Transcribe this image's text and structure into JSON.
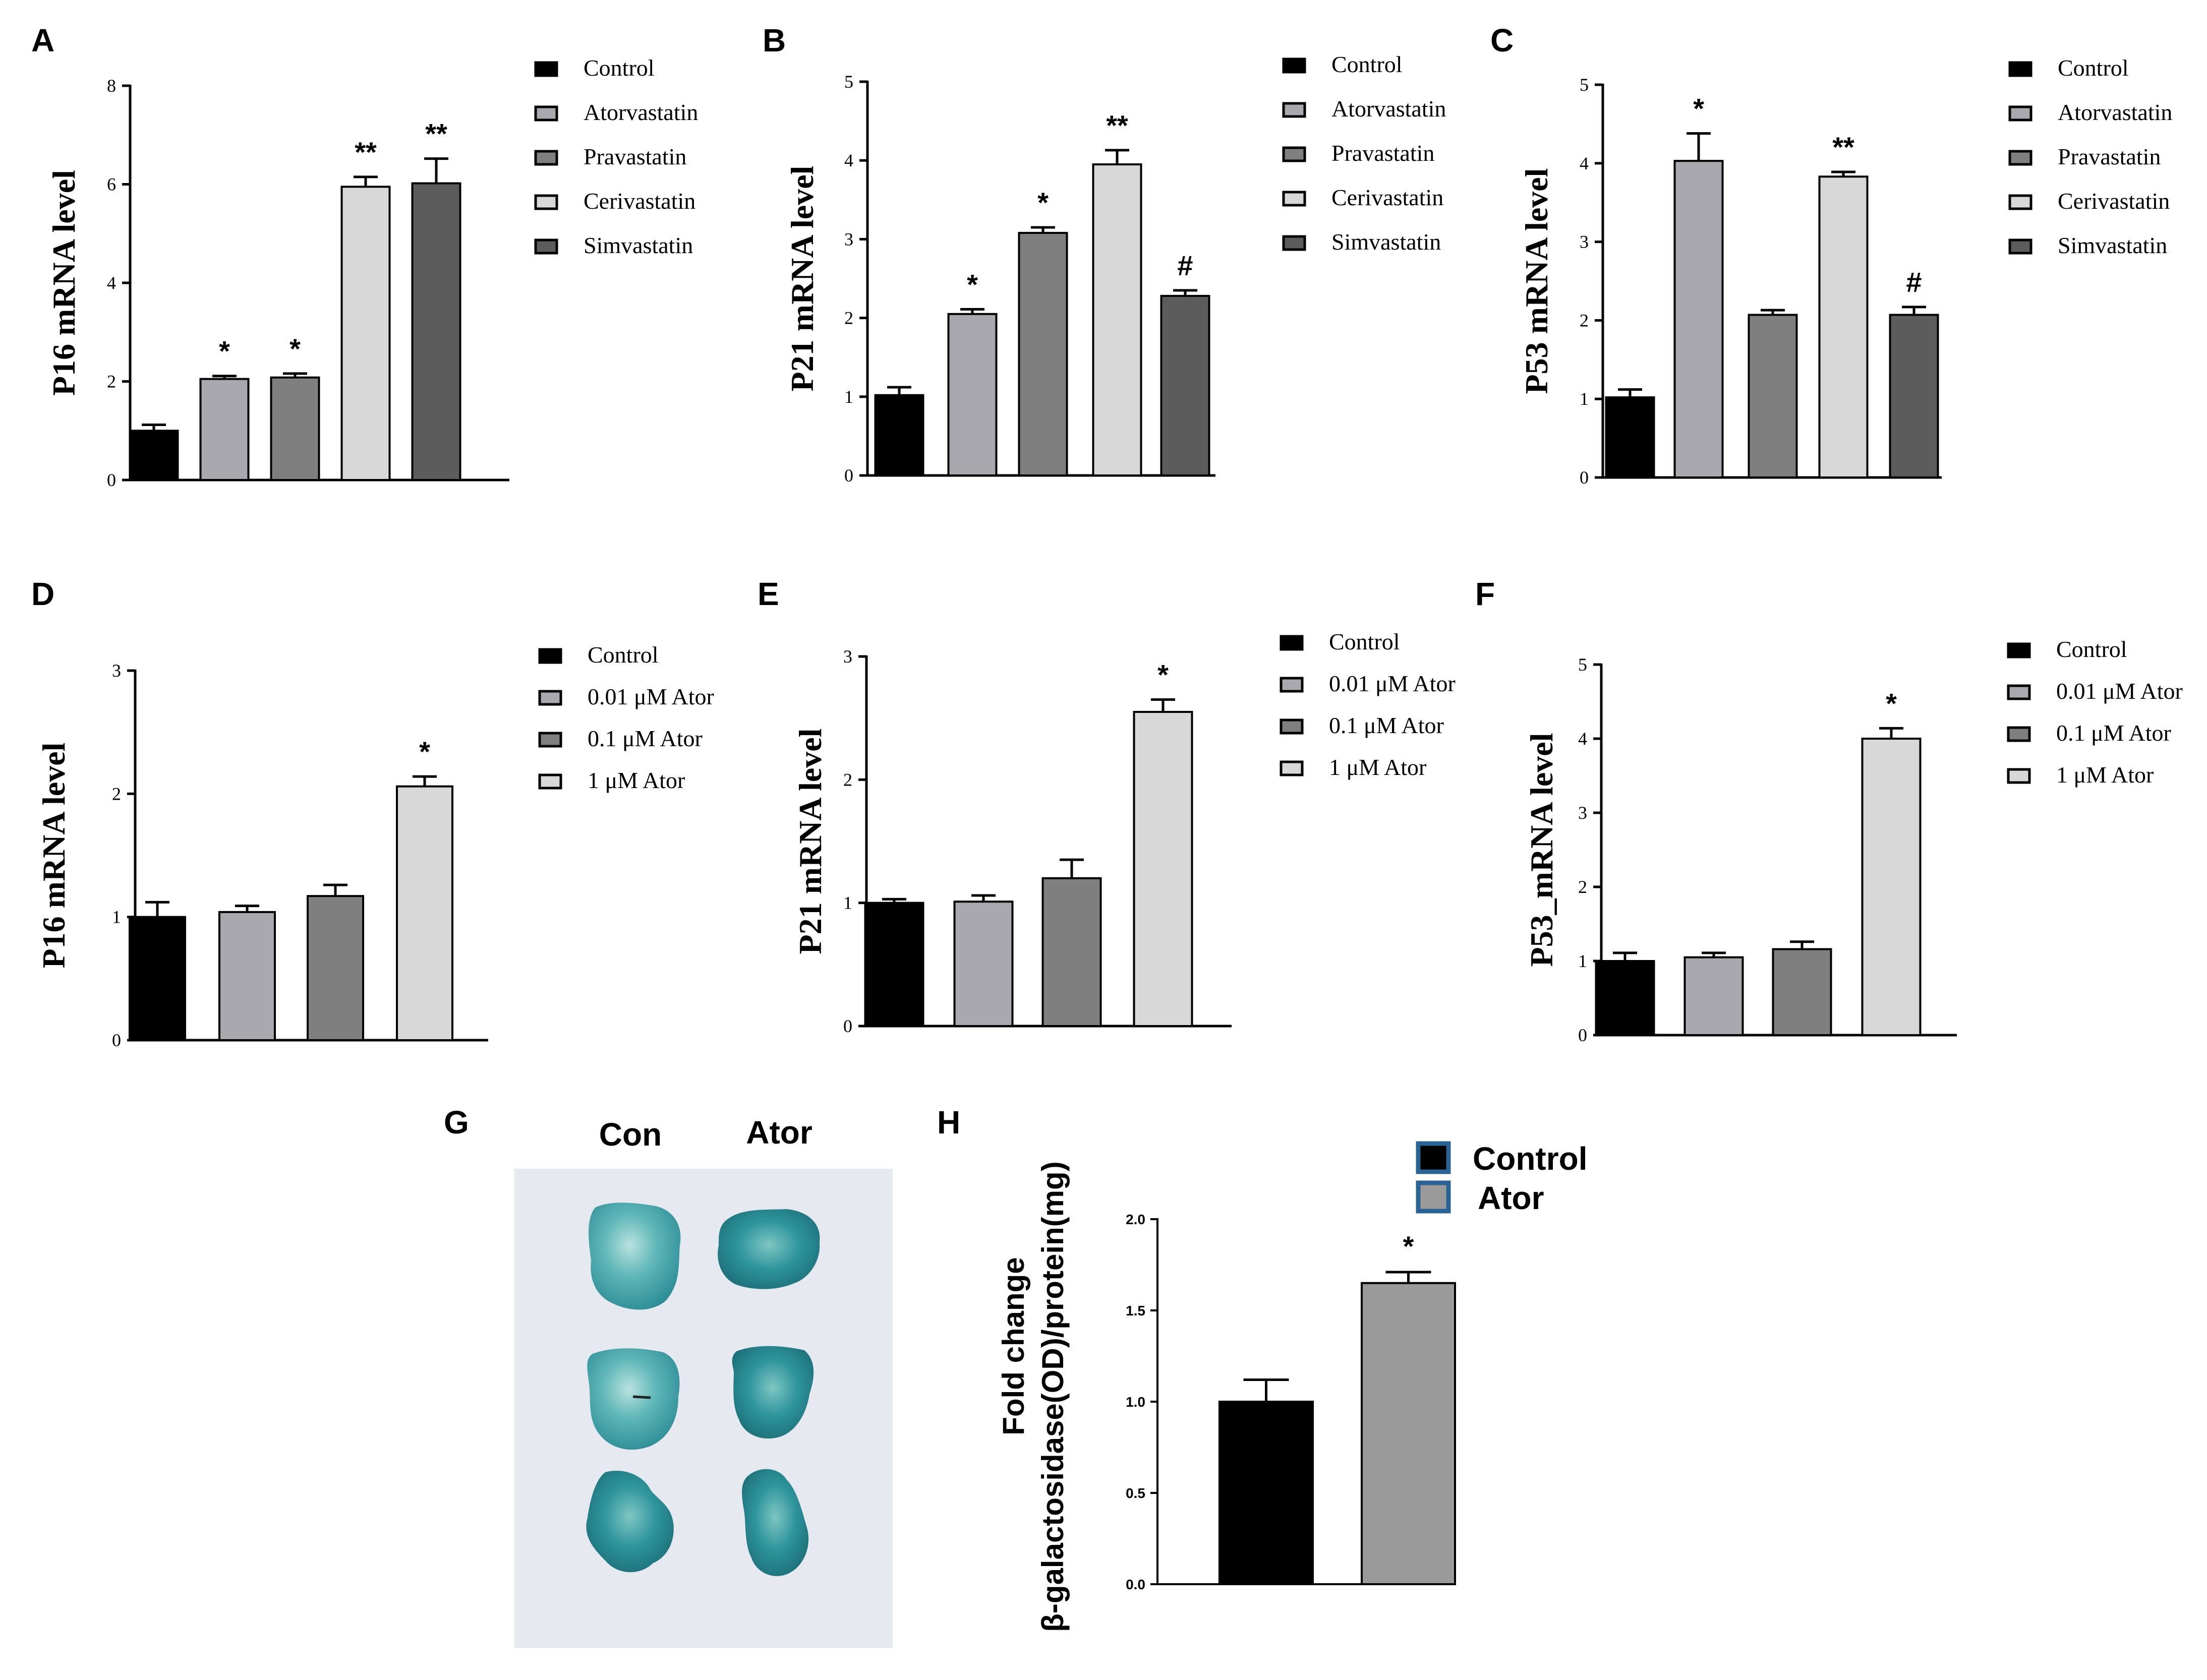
{
  "colors": {
    "black": "#000000",
    "atorvastatin": "#a8a8ae",
    "pravastatin": "#7f7f7f",
    "cerivastatin": "#d8d8d8",
    "simvastatin": "#5c5c5c",
    "legend_border_blue": "#2a6496",
    "photo_bg": "#e7eaf1",
    "tissue": "#3d9ea4"
  },
  "chart_data": [
    {
      "panel": "A",
      "type": "bar",
      "ylabel": "P16 mRNA level",
      "ylim": [
        0,
        8
      ],
      "yticks": [
        0,
        2,
        4,
        6,
        8
      ],
      "categories": [
        "Control",
        "Atorvastatin",
        "Pravastatin",
        "Cerivastatin",
        "Simvastatin"
      ],
      "values": [
        1.0,
        2.05,
        2.08,
        5.95,
        6.02
      ],
      "errors": [
        0.12,
        0.06,
        0.08,
        0.2,
        0.5
      ],
      "marks": [
        "",
        "*",
        "*",
        "**",
        "**"
      ],
      "legend": [
        "Control",
        "Atorvastatin",
        "Pravastatin",
        "Cerivastatin",
        "Simvastatin"
      ]
    },
    {
      "panel": "B",
      "type": "bar",
      "ylabel": "P21 mRNA level",
      "ylim": [
        0,
        5
      ],
      "yticks": [
        0,
        1,
        2,
        3,
        4,
        5
      ],
      "categories": [
        "Control",
        "Atorvastatin",
        "Pravastatin",
        "Cerivastatin",
        "Simvastatin"
      ],
      "values": [
        1.02,
        2.05,
        3.08,
        3.95,
        2.28
      ],
      "errors": [
        0.1,
        0.06,
        0.07,
        0.18,
        0.07
      ],
      "marks": [
        "",
        "*",
        "*",
        "**",
        "#"
      ],
      "legend": [
        "Control",
        "Atorvastatin",
        "Pravastatin",
        "Cerivastatin",
        "Simvastatin"
      ]
    },
    {
      "panel": "C",
      "type": "bar",
      "ylabel": "P53 mRNA level",
      "ylim": [
        0,
        5
      ],
      "yticks": [
        0,
        1,
        2,
        3,
        4,
        5
      ],
      "categories": [
        "Control",
        "Atorvastatin",
        "Pravastatin",
        "Cerivastatin",
        "Simvastatin"
      ],
      "values": [
        1.02,
        4.03,
        2.07,
        3.83,
        2.07
      ],
      "errors": [
        0.1,
        0.35,
        0.06,
        0.06,
        0.1
      ],
      "marks": [
        "",
        "*",
        "",
        "**",
        "#"
      ],
      "legend": [
        "Control",
        "Atorvastatin",
        "Pravastatin",
        "Cerivastatin",
        "Simvastatin"
      ]
    },
    {
      "panel": "D",
      "type": "bar",
      "ylabel": "P16 mRNA level",
      "ylim": [
        0,
        3
      ],
      "yticks": [
        0,
        1,
        2,
        3
      ],
      "categories": [
        "Control",
        "0.01 μM Ator",
        "0.1 μM Ator",
        "1 μM Ator"
      ],
      "values": [
        1.0,
        1.04,
        1.17,
        2.06
      ],
      "errors": [
        0.12,
        0.05,
        0.09,
        0.08
      ],
      "marks": [
        "",
        "",
        "",
        "*"
      ],
      "legend": [
        "Control",
        "0.01 μM Ator",
        "0.1 μM Ator",
        "1 μM Ator"
      ]
    },
    {
      "panel": "E",
      "type": "bar",
      "ylabel": "P21 mRNA level",
      "ylim": [
        0,
        3
      ],
      "yticks": [
        0,
        1,
        2,
        3
      ],
      "categories": [
        "Control",
        "0.01 μM Ator",
        "0.1 μM Ator",
        "1 μM Ator"
      ],
      "values": [
        1.0,
        1.01,
        1.2,
        2.55
      ],
      "errors": [
        0.03,
        0.05,
        0.15,
        0.1
      ],
      "marks": [
        "",
        "",
        "",
        "*"
      ],
      "legend": [
        "Control",
        "0.01 μM Ator",
        "0.1 μM Ator",
        "1 μM Ator"
      ]
    },
    {
      "panel": "F",
      "type": "bar",
      "ylabel": "P53_mRNA level",
      "ylim": [
        0,
        5
      ],
      "yticks": [
        0,
        1,
        2,
        3,
        4,
        5
      ],
      "categories": [
        "Control",
        "0.01 μM Ator",
        "0.1 μM Ator",
        "1 μM Ator"
      ],
      "values": [
        1.0,
        1.05,
        1.16,
        4.0
      ],
      "errors": [
        0.11,
        0.06,
        0.1,
        0.14
      ],
      "marks": [
        "",
        "",
        "",
        "*"
      ],
      "legend": [
        "Control",
        "0.01 μM Ator",
        "0.1 μM Ator",
        "1 μM Ator"
      ]
    },
    {
      "panel": "H",
      "type": "bar",
      "ylabel_line1": "Fold change",
      "ylabel_line2": "β-galactosidase(OD)/protein(mg)",
      "ylim": [
        0,
        2.0
      ],
      "yticks": [
        "0.0",
        "0.5",
        "1.0",
        "1.5",
        "2.0"
      ],
      "categories": [
        "Control",
        "Ator"
      ],
      "values": [
        1.0,
        1.65
      ],
      "errors": [
        0.12,
        0.06
      ],
      "marks": [
        "",
        "*"
      ],
      "legend": [
        "Control",
        "Ator"
      ]
    }
  ],
  "panel_g": {
    "letter": "G",
    "col_labels": [
      "Con",
      "Ator"
    ]
  }
}
